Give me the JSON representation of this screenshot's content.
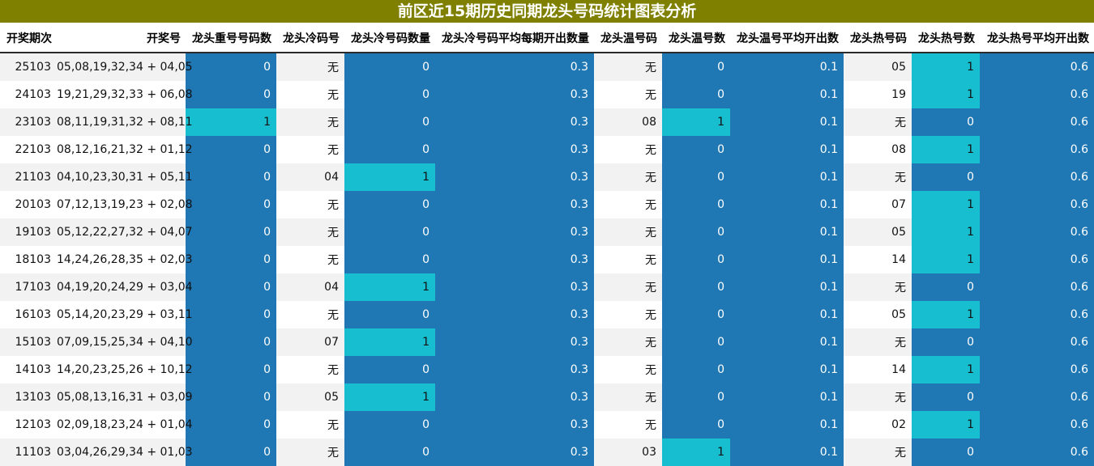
{
  "title": "前区近15期历史同期龙头号码统计图表分析",
  "headers": [
    "开奖期次",
    "开奖号",
    "龙头重号号码数",
    "龙头冷码号",
    "龙头冷号码数量",
    "龙头冷号码平均每期开出数量",
    "龙头温号码",
    "龙头温号数",
    "龙头温号平均开出数",
    "龙头热号码",
    "龙头热号数",
    "龙头热号平均开出数"
  ],
  "colors": {
    "title_bg": "#7f7f00",
    "dark_blue": "#1f77b4",
    "cyan": "#17becf",
    "stripe": "#f2f2f2"
  },
  "rows": [
    {
      "period": "25103",
      "numbers": "05,08,19,32,34 + 04,05",
      "repeat": "0",
      "cold_num": "无",
      "cold_count": "0",
      "cold_avg": "0.3",
      "warm_num": "无",
      "warm_count": "0",
      "warm_avg": "0.1",
      "hot_num": "05",
      "hot_count": "1",
      "hot_avg": "0.6"
    },
    {
      "period": "24103",
      "numbers": "19,21,29,32,33 + 06,08",
      "repeat": "0",
      "cold_num": "无",
      "cold_count": "0",
      "cold_avg": "0.3",
      "warm_num": "无",
      "warm_count": "0",
      "warm_avg": "0.1",
      "hot_num": "19",
      "hot_count": "1",
      "hot_avg": "0.6"
    },
    {
      "period": "23103",
      "numbers": "08,11,19,31,32 + 08,11",
      "repeat": "1",
      "cold_num": "无",
      "cold_count": "0",
      "cold_avg": "0.3",
      "warm_num": "08",
      "warm_count": "1",
      "warm_avg": "0.1",
      "hot_num": "无",
      "hot_count": "0",
      "hot_avg": "0.6"
    },
    {
      "period": "22103",
      "numbers": "08,12,16,21,32 + 01,12",
      "repeat": "0",
      "cold_num": "无",
      "cold_count": "0",
      "cold_avg": "0.3",
      "warm_num": "无",
      "warm_count": "0",
      "warm_avg": "0.1",
      "hot_num": "08",
      "hot_count": "1",
      "hot_avg": "0.6"
    },
    {
      "period": "21103",
      "numbers": "04,10,23,30,31 + 05,11",
      "repeat": "0",
      "cold_num": "04",
      "cold_count": "1",
      "cold_avg": "0.3",
      "warm_num": "无",
      "warm_count": "0",
      "warm_avg": "0.1",
      "hot_num": "无",
      "hot_count": "0",
      "hot_avg": "0.6"
    },
    {
      "period": "20103",
      "numbers": "07,12,13,19,23 + 02,08",
      "repeat": "0",
      "cold_num": "无",
      "cold_count": "0",
      "cold_avg": "0.3",
      "warm_num": "无",
      "warm_count": "0",
      "warm_avg": "0.1",
      "hot_num": "07",
      "hot_count": "1",
      "hot_avg": "0.6"
    },
    {
      "period": "19103",
      "numbers": "05,12,22,27,32 + 04,07",
      "repeat": "0",
      "cold_num": "无",
      "cold_count": "0",
      "cold_avg": "0.3",
      "warm_num": "无",
      "warm_count": "0",
      "warm_avg": "0.1",
      "hot_num": "05",
      "hot_count": "1",
      "hot_avg": "0.6"
    },
    {
      "period": "18103",
      "numbers": "14,24,26,28,35 + 02,03",
      "repeat": "0",
      "cold_num": "无",
      "cold_count": "0",
      "cold_avg": "0.3",
      "warm_num": "无",
      "warm_count": "0",
      "warm_avg": "0.1",
      "hot_num": "14",
      "hot_count": "1",
      "hot_avg": "0.6"
    },
    {
      "period": "17103",
      "numbers": "04,19,20,24,29 + 03,04",
      "repeat": "0",
      "cold_num": "04",
      "cold_count": "1",
      "cold_avg": "0.3",
      "warm_num": "无",
      "warm_count": "0",
      "warm_avg": "0.1",
      "hot_num": "无",
      "hot_count": "0",
      "hot_avg": "0.6"
    },
    {
      "period": "16103",
      "numbers": "05,14,20,23,29 + 03,11",
      "repeat": "0",
      "cold_num": "无",
      "cold_count": "0",
      "cold_avg": "0.3",
      "warm_num": "无",
      "warm_count": "0",
      "warm_avg": "0.1",
      "hot_num": "05",
      "hot_count": "1",
      "hot_avg": "0.6"
    },
    {
      "period": "15103",
      "numbers": "07,09,15,25,34 + 04,10",
      "repeat": "0",
      "cold_num": "07",
      "cold_count": "1",
      "cold_avg": "0.3",
      "warm_num": "无",
      "warm_count": "0",
      "warm_avg": "0.1",
      "hot_num": "无",
      "hot_count": "0",
      "hot_avg": "0.6"
    },
    {
      "period": "14103",
      "numbers": "14,20,23,25,26 + 10,12",
      "repeat": "0",
      "cold_num": "无",
      "cold_count": "0",
      "cold_avg": "0.3",
      "warm_num": "无",
      "warm_count": "0",
      "warm_avg": "0.1",
      "hot_num": "14",
      "hot_count": "1",
      "hot_avg": "0.6"
    },
    {
      "period": "13103",
      "numbers": "05,08,13,16,31 + 03,09",
      "repeat": "0",
      "cold_num": "05",
      "cold_count": "1",
      "cold_avg": "0.3",
      "warm_num": "无",
      "warm_count": "0",
      "warm_avg": "0.1",
      "hot_num": "无",
      "hot_count": "0",
      "hot_avg": "0.6"
    },
    {
      "period": "12103",
      "numbers": "02,09,18,23,24 + 01,04",
      "repeat": "0",
      "cold_num": "无",
      "cold_count": "0",
      "cold_avg": "0.3",
      "warm_num": "无",
      "warm_count": "0",
      "warm_avg": "0.1",
      "hot_num": "02",
      "hot_count": "1",
      "hot_avg": "0.6"
    },
    {
      "period": "11103",
      "numbers": "03,04,26,29,34 + 01,03",
      "repeat": "0",
      "cold_num": "无",
      "cold_count": "0",
      "cold_avg": "0.3",
      "warm_num": "03",
      "warm_count": "1",
      "warm_avg": "0.1",
      "hot_num": "无",
      "hot_count": "0",
      "hot_avg": "0.6"
    }
  ]
}
